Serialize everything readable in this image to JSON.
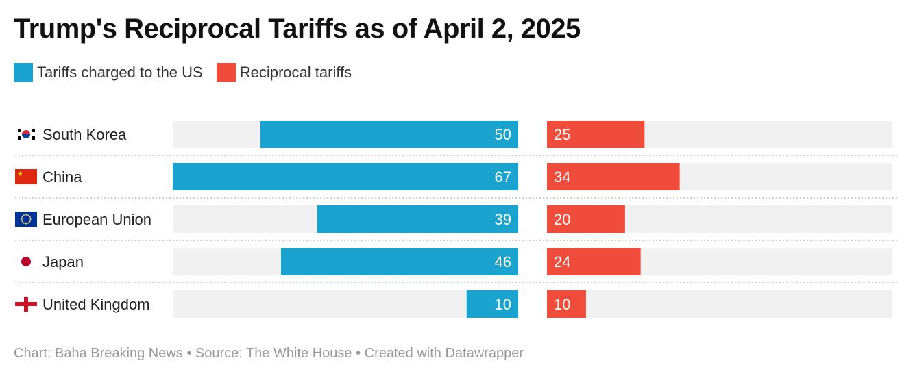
{
  "chart_data": {
    "type": "bar",
    "title": "Trump's Reciprocal Tariffs as of April 2, 2025",
    "categories": [
      "South Korea",
      "China",
      "European Union",
      "Japan",
      "United Kingdom"
    ],
    "flags": [
      "south-korea-flag-icon",
      "china-flag-icon",
      "eu-flag-icon",
      "japan-flag-icon",
      "uk-flag-icon"
    ],
    "series": [
      {
        "name": "Tariffs charged to the US",
        "values": [
          50,
          67,
          39,
          46,
          10
        ],
        "color": "#1ba3cf"
      },
      {
        "name": "Reciprocal tariffs",
        "values": [
          25,
          34,
          20,
          24,
          10
        ],
        "color": "#ef4c3c"
      }
    ],
    "xlim": [
      0,
      67
    ],
    "grid": false,
    "legend": "top-left"
  },
  "footer": "Chart: Baha Breaking News • Source: The White House • Created with Datawrapper"
}
